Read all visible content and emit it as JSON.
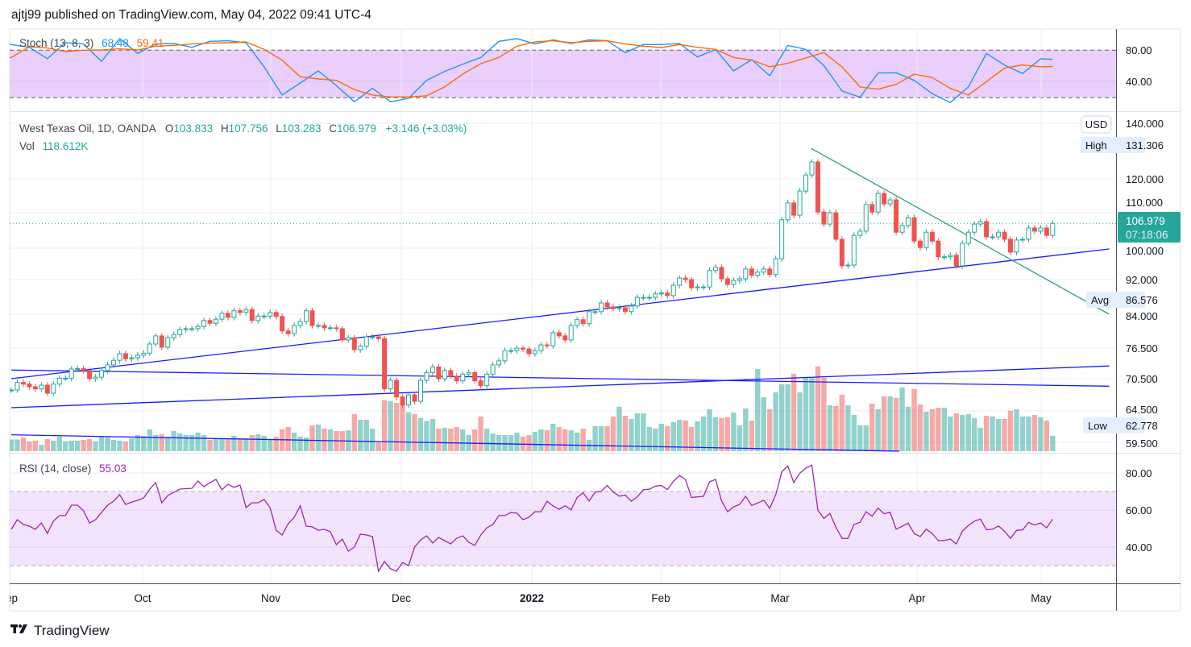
{
  "header": {
    "published": "ajtj99 published on TradingView.com, May 04, 2022 09:41 UTC-4"
  },
  "stoch": {
    "title": "Stoch (13, 8, 3)",
    "k_value": "68.48",
    "d_value": "59.41",
    "k_color": "#2196f3",
    "d_color": "#ff6d00",
    "axis_labels": [
      "80.00",
      "40.00"
    ],
    "band": [
      20,
      80
    ],
    "band_color": "#eacffc"
  },
  "main": {
    "symbol": "West Texas Oil, 1D, OANDA",
    "o_label": "O",
    "o": "103.833",
    "h_label": "H",
    "h": "107.756",
    "l_label": "L",
    "l": "103.283",
    "c_label": "C",
    "c": "106.979",
    "change": "+3.146 (+3.03%)",
    "vol_label": "Vol",
    "vol": "118.612K",
    "up_color": "#26a69a",
    "down_color": "#ef5350"
  },
  "price_axis": {
    "labels": [
      "140.000",
      "120.000",
      "110.000",
      "100.000",
      "92.000",
      "84.000",
      "76.500",
      "70.500",
      "64.500",
      "59.500"
    ],
    "currency": "USD",
    "high_label": "High",
    "high_value": "131.306",
    "avg_label": "Avg",
    "avg_value": "86.576",
    "low_label": "Low",
    "low_value": "62.778",
    "last_price": "106.979",
    "countdown": "07:18:06"
  },
  "rsi": {
    "title": "RSI (14, close)",
    "value": "55.03",
    "color": "#9c27b0",
    "axis_labels": [
      "80.00",
      "60.00",
      "40.00"
    ],
    "band": [
      30,
      70
    ],
    "band_color": "#f3e4fd"
  },
  "time_axis": {
    "labels": [
      "Sep",
      "Oct",
      "Nov",
      "Dec",
      "2022",
      "Feb",
      "Mar",
      "Apr",
      "May"
    ]
  },
  "footer": {
    "brand": "TradingView"
  },
  "chart_data": [
    {
      "type": "candlestick",
      "title": "West Texas Oil, 1D, OANDA",
      "x_range": [
        "2021-09",
        "2022-05-04"
      ],
      "scale": "auto (non-linear)",
      "close": [
        68.4,
        69.8,
        69.5,
        69.0,
        68.6,
        69.3,
        67.8,
        69.5,
        70.6,
        70.6,
        72.4,
        72.5,
        72.1,
        70.5,
        70.8,
        72.1,
        73.2,
        74.1,
        75.4,
        74.4,
        74.6,
        75.1,
        75.5,
        77.4,
        79.2,
        76.7,
        78.8,
        79.5,
        80.6,
        80.8,
        80.8,
        81.3,
        82.6,
        82.0,
        82.9,
        84.2,
        83.3,
        84.8,
        84.4,
        85.1,
        82.6,
        83.6,
        83.6,
        84.4,
        83.5,
        80.3,
        79.7,
        81.5,
        82.4,
        84.8,
        81.5,
        81.5,
        81.0,
        81.0,
        80.8,
        78.3,
        78.8,
        76.2,
        76.9,
        79.0,
        79.0,
        78.6,
        68.6,
        70.2,
        67.1,
        65.6,
        67.5,
        66.3,
        70.2,
        71.7,
        72.8,
        70.5,
        72.1,
        71.0,
        70.1,
        71.4,
        71.7,
        70.1,
        69.2,
        71.4,
        73.2,
        74.0,
        76.0,
        76.0,
        76.5,
        76.3,
        75.4,
        76.0,
        77.2,
        77.0,
        79.9,
        79.2,
        78.3,
        81.5,
        82.8,
        81.9,
        84.6,
        84.6,
        86.6,
        85.7,
        85.3,
        85.5,
        84.6,
        85.9,
        87.9,
        87.9,
        87.9,
        88.7,
        88.9,
        88.3,
        90.7,
        92.4,
        92.0,
        90.1,
        90.3,
        90.3,
        94.3,
        95.1,
        92.2,
        90.9,
        91.8,
        92.2,
        94.7,
        93.1,
        93.9,
        94.7,
        93.3,
        97.3,
        108.0,
        112.9,
        109.3,
        116.4,
        121.4,
        126.1,
        110.2,
        106.8,
        110.0,
        102.5,
        95.5,
        95.7,
        103.6,
        104.8,
        112.4,
        110.2,
        115.7,
        112.6,
        113.8,
        104.5,
        106.4,
        108.6,
        102.0,
        100.2,
        104.5,
        102.0,
        97.8,
        97.8,
        98.2,
        95.5,
        101.4,
        104.5,
        106.8,
        107.5,
        103.2,
        103.2,
        104.5,
        102.5,
        99.0,
        102.3,
        102.5,
        105.7,
        104.8,
        105.7,
        103.6,
        106.979
      ],
      "high": 131.306,
      "low": 62.778,
      "avg": 86.576,
      "last": 106.979
    },
    {
      "type": "bar",
      "title": "Vol",
      "unit": "K",
      "values": [
        90,
        90,
        106,
        75,
        81,
        50,
        93,
        81,
        112,
        75,
        81,
        81,
        87,
        93,
        75,
        112,
        106,
        87,
        81,
        75,
        99,
        124,
        118,
        168,
        124,
        130,
        112,
        155,
        137,
        124,
        124,
        143,
        124,
        87,
        93,
        99,
        99,
        118,
        99,
        99,
        124,
        130,
        118,
        93,
        112,
        168,
        186,
        143,
        112,
        106,
        199,
        205,
        174,
        168,
        155,
        155,
        161,
        286,
        242,
        242,
        174,
        68,
        393,
        385,
        372,
        356,
        300,
        286,
        255,
        232,
        248,
        174,
        180,
        174,
        186,
        168,
        124,
        168,
        267,
        174,
        137,
        124,
        124,
        124,
        143,
        112,
        124,
        149,
        168,
        161,
        211,
        186,
        168,
        161,
        143,
        174,
        87,
        193,
        193,
        193,
        267,
        342,
        273,
        248,
        292,
        292,
        186,
        174,
        211,
        193,
        224,
        242,
        236,
        186,
        230,
        267,
        323,
        261,
        255,
        261,
        298,
        199,
        329,
        236,
        633,
        416,
        323,
        453,
        515,
        515,
        596,
        453,
        571,
        565,
        652,
        565,
        354,
        348,
        435,
        354,
        279,
        199,
        199,
        366,
        323,
        422,
        422,
        410,
        491,
        342,
        478,
        360,
        304,
        323,
        335,
        335,
        267,
        292,
        279,
        286,
        255,
        180,
        273,
        267,
        248,
        248,
        311,
        323,
        267,
        267,
        279,
        261,
        236,
        118.612
      ]
    },
    {
      "type": "line",
      "title": "Stoch (13, 8, 3)",
      "ylim": [
        0,
        100
      ],
      "series": [
        {
          "name": "%K",
          "values": [
            87.1,
            83.7,
            69.2,
            89.5,
            87.8,
            65.8,
            94.6,
            75.9,
            87.8,
            88.5,
            83.7,
            91.2,
            91.9,
            89.5,
            59.0,
            23.4,
            38.6,
            53.9,
            35.3,
            14.9,
            31.9,
            14.9,
            19.3,
            42,
            53.2,
            62.4,
            70.8,
            91.2,
            94.6,
            87.8,
            92.9,
            88.5,
            92.9,
            91.9,
            76.9,
            87.1,
            87.1,
            88.5,
            71.5,
            81,
            53.9,
            68.1,
            47.8,
            86.1,
            81,
            60.7,
            28.5,
            20.7,
            51.2,
            51.5,
            42,
            25.1,
            13.9,
            33.6,
            75.9,
            61.4,
            50.5,
            69.2,
            68.48
          ]
        },
        {
          "name": "%D",
          "values": [
            70.8,
            84.4,
            82.7,
            78.3,
            80,
            80.3,
            81.7,
            80.3,
            85.1,
            86.1,
            87.8,
            88.8,
            89.5,
            90.5,
            81,
            67.5,
            46.4,
            43.7,
            42,
            30.2,
            23.4,
            21,
            21,
            22.4,
            33.6,
            49.8,
            63,
            70.8,
            85.1,
            90.5,
            91.9,
            89.5,
            91.2,
            91.9,
            87.8,
            85.1,
            83.4,
            87.1,
            83.7,
            81,
            70.8,
            67.5,
            59,
            63.4,
            70.2,
            76.9,
            59,
            33.6,
            30.8,
            36.9,
            49.8,
            45.4,
            31.9,
            23.4,
            40.3,
            57.3,
            61.4,
            59,
            59.41
          ]
        }
      ]
    },
    {
      "type": "line",
      "title": "RSI (14, close)",
      "ylim": [
        20,
        90
      ],
      "values": [
        49.6,
        54.8,
        52.2,
        51.3,
        49.6,
        53,
        47.4,
        54,
        57,
        57,
        62.6,
        62.6,
        59.6,
        53,
        54.8,
        58.7,
        62.6,
        64.8,
        68.3,
        63,
        64.3,
        65.2,
        66.5,
        71.3,
        74.8,
        63.9,
        67.8,
        69.6,
        71.3,
        71.5,
        71.7,
        75.7,
        72.6,
        74.8,
        76.5,
        70.9,
        73.9,
        72.2,
        73.5,
        61.3,
        63.9,
        63.9,
        65.7,
        61.3,
        49.1,
        46.5,
        52.6,
        56.1,
        62.2,
        51.3,
        50.9,
        49.1,
        49.6,
        48.3,
        41.3,
        44.3,
        37.8,
        40,
        47,
        46.5,
        45.7,
        27,
        32.2,
        28.3,
        27,
        31.7,
        30,
        40,
        43.9,
        46.1,
        42.2,
        45.2,
        43.5,
        41.7,
        44.8,
        46.1,
        42.6,
        40.9,
        46.5,
        50.4,
        52.2,
        57,
        57,
        58.7,
        58.3,
        54.8,
        56.1,
        59.1,
        59.1,
        64.8,
        62.2,
        60.4,
        62.3,
        60.1,
        66.7,
        69.3,
        64.9,
        69.7,
        70,
        73.3,
        69.7,
        67.5,
        68.1,
        64.7,
        67.1,
        71,
        71.2,
        72.9,
        73.2,
        71,
        75.5,
        78.6,
        76.5,
        66.8,
        67.1,
        67.4,
        75.2,
        76.5,
        64.9,
        59.1,
        61.7,
        63,
        67.4,
        62.5,
        63.8,
        65.3,
        60.9,
        68.3,
        80.6,
        83.8,
        74.8,
        79.9,
        82.6,
        84.2,
        59.9,
        55.5,
        58.1,
        50.7,
        44.7,
        44.7,
        52.2,
        53.3,
        59.1,
        56.7,
        61,
        58,
        58.8,
        49.7,
        51.2,
        52.9,
        47.3,
        45.7,
        49.7,
        47.3,
        43.5,
        43.6,
        44.3,
        41.7,
        48.6,
        51.6,
        54,
        55.1,
        49.4,
        49.6,
        51.4,
        48.6,
        44.7,
        49,
        49.3,
        53.3,
        51.9,
        53,
        50.4,
        55.03
      ]
    },
    {
      "type": "drawings",
      "lines": [
        {
          "from": {
            "date": "2021-09-01",
            "price": 70.5
          },
          "to": {
            "date": "2022-05-19",
            "price": 99.8
          },
          "color": "#1a1aff"
        },
        {
          "from": {
            "date": "2021-09-01",
            "price": 72.2
          },
          "to": {
            "date": "2022-05-19",
            "price": 69.1
          },
          "color": "#1a1aff"
        },
        {
          "from": {
            "date": "2021-09-01",
            "price": 65.1
          },
          "to": {
            "date": "2022-05-19",
            "price": 73.0
          },
          "color": "#1a1aff"
        },
        {
          "from": {
            "date": "2021-09-01",
            "price": 60.7
          },
          "to": {
            "date": "2022-03-28",
            "price": 58.1
          },
          "color": "#1a1aff"
        },
        {
          "from": {
            "date": "2022-03-08",
            "price": 131.0
          },
          "to": {
            "date": "2022-05-19",
            "price": 84.0
          },
          "color": "#2e9e86"
        }
      ]
    }
  ]
}
